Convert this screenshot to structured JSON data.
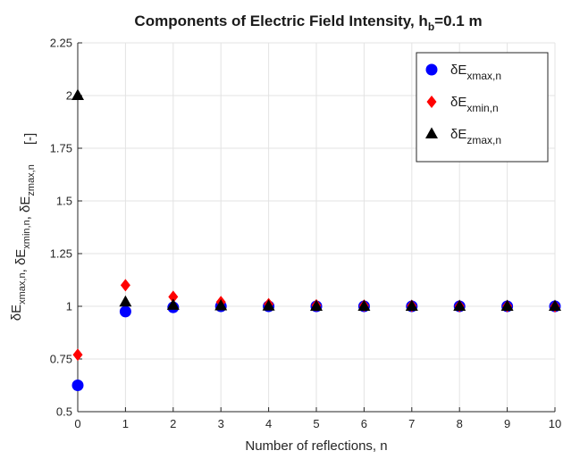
{
  "chart_data": {
    "type": "scatter",
    "title": {
      "main": "Components of Electric Field Intensity, h",
      "sub": "b",
      "rest": "=0.1 m"
    },
    "xlabel": "Number of reflections, n",
    "ylabel": {
      "parts": [
        {
          "t": "δE",
          "sub": "xmax,n"
        },
        {
          "t": ", δE",
          "sub": "xmin,n"
        },
        {
          "t": ", δE",
          "sub": "zmax,n"
        }
      ],
      "unit": "[-]"
    },
    "xlim": [
      0,
      10
    ],
    "ylim": [
      0.5,
      2.25
    ],
    "xticks": [
      "0",
      "1",
      "2",
      "3",
      "4",
      "5",
      "6",
      "7",
      "8",
      "9",
      "10"
    ],
    "yticks": [
      "0.5",
      "0.75",
      "1",
      "1.25",
      "1.5",
      "1.75",
      "2",
      "2.25"
    ],
    "grid": true,
    "legend_position": "top-right",
    "x": [
      0,
      1,
      2,
      3,
      4,
      5,
      6,
      7,
      8,
      9,
      10
    ],
    "series": [
      {
        "label": {
          "t": "δE",
          "sub": "xmax,n"
        },
        "marker": "circle",
        "color": "#0000ff",
        "values": [
          0.625,
          0.975,
          0.995,
          1.0,
          1.0,
          1.0,
          1.0,
          1.0,
          1.0,
          1.0,
          1.0
        ]
      },
      {
        "label": {
          "t": "δE",
          "sub": "xmin,n"
        },
        "marker": "diamond",
        "color": "#ff0000",
        "values": [
          0.77,
          1.1,
          1.045,
          1.02,
          1.01,
          1.005,
          1.003,
          1.002,
          1.001,
          1.001,
          1.0
        ]
      },
      {
        "label": {
          "t": "δE",
          "sub": "zmax,n"
        },
        "marker": "triangle",
        "color": "#000000",
        "values": [
          2.0,
          1.02,
          1.005,
          1.002,
          1.001,
          1.0,
          1.0,
          1.0,
          1.0,
          1.0,
          1.0
        ]
      }
    ]
  }
}
